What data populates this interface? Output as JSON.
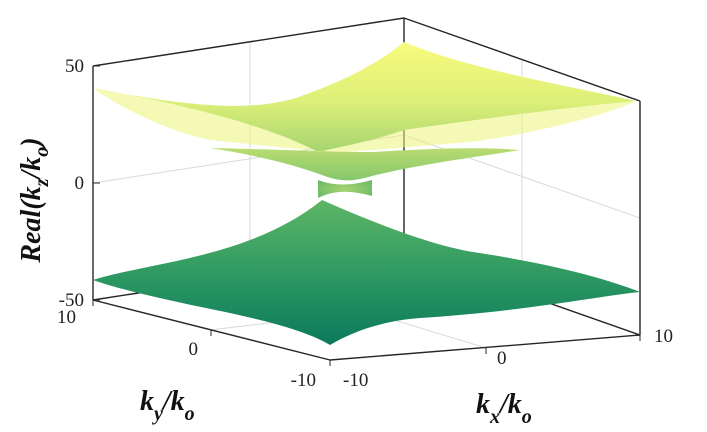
{
  "chart_data": {
    "type": "surface",
    "description_of_view": "3-D view of two surfaces",
    "series": [
      {
        "values_note": "upper sheet",
        "x": [
          -10,
          -5,
          0,
          5,
          10
        ],
        "y": [
          -10,
          -5,
          0,
          5,
          10
        ],
        "z": [
          [
            40,
            31,
            24,
            31,
            40
          ],
          [
            31,
            20,
            11,
            20,
            31
          ],
          [
            24,
            11,
            0,
            11,
            24
          ],
          [
            31,
            20,
            11,
            20,
            31
          ],
          [
            40,
            31,
            24,
            31,
            40
          ]
        ]
      },
      {
        "values_note": "lower sheet",
        "x": [
          -10,
          -5,
          0,
          5,
          10
        ],
        "y": [
          -10,
          -5,
          0,
          5,
          10
        ],
        "z": [
          [
            -40,
            -31,
            -24,
            -31,
            -40
          ],
          [
            -31,
            -20,
            -11,
            -20,
            -31
          ],
          [
            -24,
            -11,
            0,
            -11,
            -24
          ],
          [
            -31,
            -20,
            -11,
            -20,
            -31
          ],
          [
            -40,
            -31,
            -24,
            -31,
            -40
          ]
        ]
      }
    ],
    "xlim": [
      -10,
      10
    ],
    "ylim": [
      -10,
      10
    ],
    "zlim": [
      -50,
      50
    ],
    "xticks": [
      "-10",
      "0",
      "10"
    ],
    "yticks": [
      "10",
      "0",
      "-10"
    ],
    "zticks": [
      "50",
      "0",
      "-50"
    ],
    "xlabel": {
      "main": "k",
      "sub": "x",
      "sep": "/k",
      "sub2": "o"
    },
    "ylabel": {
      "main": "k",
      "sub": "y",
      "sep": "/k",
      "sub2": "o"
    },
    "zlabel": {
      "main": "Real(k",
      "sub": "z",
      "sep": "/k",
      "sub2": "o",
      "close": ")"
    },
    "grid": true,
    "colormap": [
      "#0b7a5c",
      "#3a9e64",
      "#8cc86c",
      "#d6ea78",
      "#f6f67a"
    ]
  }
}
